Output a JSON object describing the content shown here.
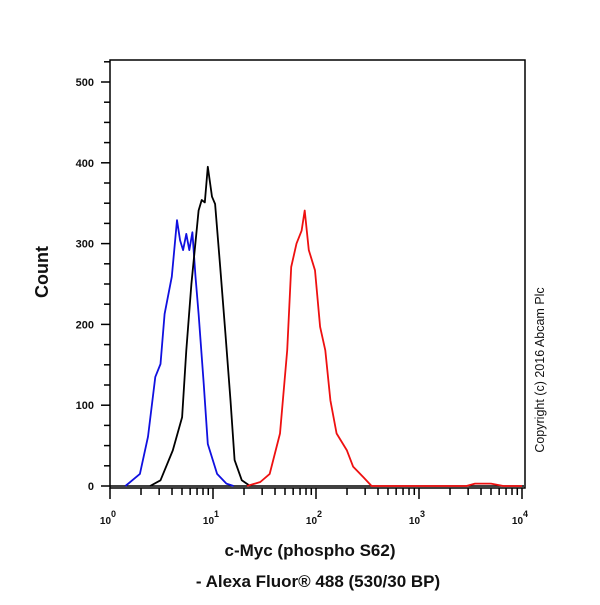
{
  "chart_data": {
    "type": "line",
    "title": "",
    "xlabel_line1": "c-Myc (phospho S62)",
    "xlabel_line2": "- Alexa Fluor® 488 (530/30 BP)",
    "ylabel": "Count",
    "x_scale": "log",
    "xlim": [
      1,
      10000
    ],
    "ylim": [
      0,
      530
    ],
    "x_ticks": [
      {
        "base": "10",
        "exp": "0"
      },
      {
        "base": "10",
        "exp": "1"
      },
      {
        "base": "10",
        "exp": "2"
      },
      {
        "base": "10",
        "exp": "3"
      },
      {
        "base": "10",
        "exp": "4"
      }
    ],
    "y_ticks": [
      "0",
      "100",
      "200",
      "300",
      "400",
      "500"
    ],
    "y_tick_values": [
      0,
      100,
      200,
      300,
      400,
      500
    ],
    "grid": false,
    "series": [
      {
        "color": "#1010e0",
        "x": [
          1.41,
          1.95,
          2.34,
          2.75,
          3.09,
          3.39,
          3.98,
          4.47,
          4.79,
          5.13,
          5.5,
          5.89,
          6.31,
          6.76,
          7.24,
          8.13,
          8.91,
          10.96,
          13.5,
          15.85
        ],
        "y": [
          0,
          15,
          61,
          135,
          151,
          213,
          259,
          329,
          304,
          292,
          312,
          292,
          314,
          259,
          213,
          127,
          52,
          15,
          3,
          0
        ]
      },
      {
        "color": "#000000",
        "x": [
          2.45,
          3.09,
          4.07,
          5.01,
          5.5,
          6.17,
          7.24,
          7.76,
          8.32,
          8.91,
          9.77,
          10.47,
          11.75,
          13.18,
          14.79,
          16.22,
          19.05,
          22.9
        ],
        "y": [
          0,
          7,
          44,
          85,
          168,
          250,
          341,
          354,
          351,
          395,
          358,
          349,
          271,
          189,
          106,
          32,
          7,
          0
        ]
      },
      {
        "color": "#ee1010",
        "x": [
          21.4,
          28.8,
          35.5,
          44.7,
          52.5,
          57.5,
          64.6,
          72.4,
          77.6,
          85.1,
          97.7,
          109.6,
          123,
          138,
          158.5,
          199.5,
          229,
          288,
          346.7,
          1000,
          2884,
          3500,
          5000,
          6600,
          10000
        ],
        "y": [
          0,
          5,
          15,
          65,
          168,
          271,
          300,
          316,
          341,
          292,
          267,
          197,
          168,
          106,
          65,
          44,
          24,
          11,
          0,
          0,
          0,
          3,
          3,
          0,
          0
        ]
      }
    ]
  },
  "watermark": "Copyright (c) 2016 Abcam Plc"
}
